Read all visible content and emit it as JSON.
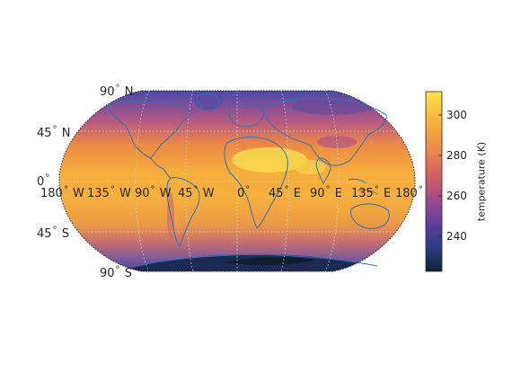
{
  "map": {
    "projection": "robinson",
    "graticule_style": "dotted",
    "coastlines_color": "#2f72b4",
    "lat_labels": [
      {
        "value": "90",
        "dir": "N"
      },
      {
        "value": "45",
        "dir": "N"
      },
      {
        "value": "0",
        "dir": ""
      },
      {
        "value": "45",
        "dir": "S"
      },
      {
        "value": "90",
        "dir": "S"
      }
    ],
    "lon_labels": [
      {
        "value": "180",
        "dir": "W"
      },
      {
        "value": "135",
        "dir": "W"
      },
      {
        "value": "90",
        "dir": "W"
      },
      {
        "value": "45",
        "dir": "W"
      },
      {
        "value": "0",
        "dir": ""
      },
      {
        "value": "45",
        "dir": "E"
      },
      {
        "value": "90",
        "dir": "E"
      },
      {
        "value": "135",
        "dir": "E"
      },
      {
        "value": "180",
        "dir": ""
      }
    ]
  },
  "colorbar": {
    "label": "temperature (K)",
    "ticks": [
      "300",
      "280",
      "260",
      "240"
    ],
    "range": [
      222,
      311
    ],
    "colors": [
      "#f7e44a",
      "#f8a93c",
      "#ee7a4e",
      "#c8566d",
      "#8e4289",
      "#4a3d9b",
      "#273a78",
      "#102638"
    ]
  }
}
